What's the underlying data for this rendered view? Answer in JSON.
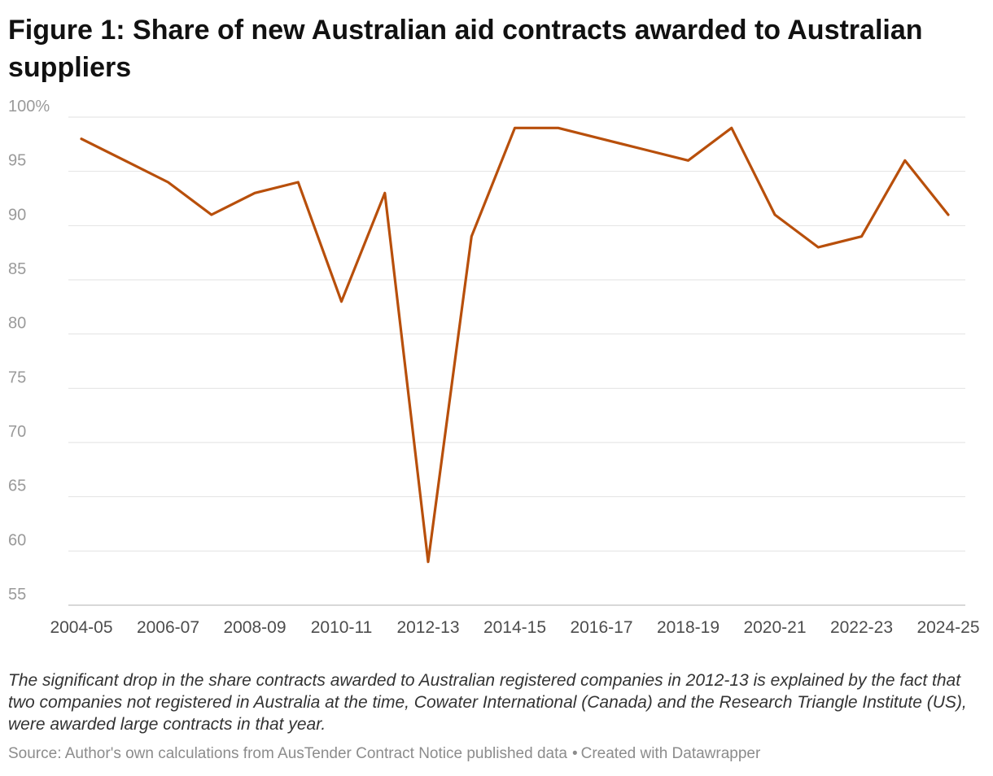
{
  "chart_data": {
    "type": "line",
    "title": "Figure 1: Share of new Australian aid contracts awarded to Australian suppliers",
    "xlabel": "",
    "ylabel": "",
    "ylim": [
      55,
      100
    ],
    "yticks": [
      {
        "value": 100,
        "label": "100%"
      },
      {
        "value": 95,
        "label": "95"
      },
      {
        "value": 90,
        "label": "90"
      },
      {
        "value": 85,
        "label": "85"
      },
      {
        "value": 80,
        "label": "80"
      },
      {
        "value": 75,
        "label": "75"
      },
      {
        "value": 70,
        "label": "70"
      },
      {
        "value": 65,
        "label": "65"
      },
      {
        "value": 60,
        "label": "60"
      },
      {
        "value": 55,
        "label": "55"
      }
    ],
    "categories": [
      "2004-05",
      "2005-06",
      "2006-07",
      "2007-08",
      "2008-09",
      "2009-10",
      "2010-11",
      "2011-12",
      "2012-13",
      "2013-14",
      "2014-15",
      "2015-16",
      "2016-17",
      "2017-18",
      "2018-19",
      "2019-20",
      "2020-21",
      "2021-22",
      "2022-23",
      "2023-24",
      "2024-25"
    ],
    "xtick_labels": [
      "2004-05",
      "2006-07",
      "2008-09",
      "2010-11",
      "2012-13",
      "2014-15",
      "2016-17",
      "2018-19",
      "2020-21",
      "2022-23",
      "2024-25"
    ],
    "series": [
      {
        "name": "Share awarded to Australian suppliers",
        "color": "#b84f0b",
        "values": [
          98,
          96,
          94,
          91,
          93,
          94,
          83,
          93,
          59,
          89,
          99,
          99,
          98,
          97,
          96,
          99,
          91,
          88,
          89,
          96,
          91
        ]
      }
    ],
    "grid": true,
    "legend": "none"
  },
  "note": "The significant drop in the share contracts awarded to Australian registered companies in 2012-13 is explained by the fact that two companies not registered in Australia at the time, Cowater International (Canada) and the Research Triangle Institute (US), were awarded large contracts in that year.",
  "footer": {
    "source": "Source: Author's own calculations from AusTender Contract Notice published data",
    "separator": "•",
    "credit": "Created with Datawrapper"
  },
  "colors": {
    "line": "#b84f0b",
    "grid": "#e2e2e2",
    "axis": "#cccccc",
    "tick_y": "#9a9a9a",
    "tick_x": "#4d4d4d"
  }
}
